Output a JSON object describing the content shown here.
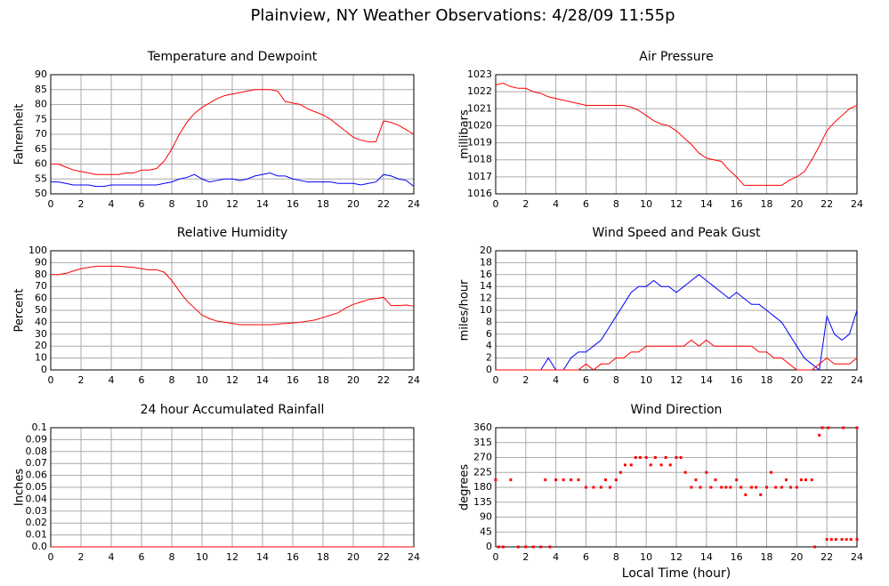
{
  "title": "Plainview, NY Weather Observations: 4/28/09 11:55p",
  "chart_data": [
    {
      "type": "line",
      "title": "Temperature and Dewpoint",
      "ylabel": "Fahrenheit",
      "x": [
        0,
        0.5,
        1,
        1.5,
        2,
        2.5,
        3,
        3.5,
        4,
        4.5,
        5,
        5.5,
        6,
        6.5,
        7,
        7.5,
        8,
        8.5,
        9,
        9.5,
        10,
        10.5,
        11,
        11.5,
        12,
        12.5,
        13,
        13.5,
        14,
        14.5,
        15,
        15.5,
        16,
        16.5,
        17,
        17.5,
        18,
        18.5,
        19,
        19.5,
        20,
        20.5,
        21,
        21.5,
        22,
        22.5,
        23,
        23.5,
        24
      ],
      "series": [
        {
          "color": "#ff0000",
          "values": [
            60,
            60,
            59,
            58,
            57.5,
            57,
            56.5,
            56.5,
            56.5,
            56.5,
            57,
            57,
            58,
            58,
            58.5,
            61,
            65,
            70,
            74,
            77,
            79,
            80.5,
            82,
            83,
            83.5,
            84,
            84.5,
            85,
            85,
            85,
            84.5,
            81,
            80.5,
            80,
            78.5,
            77.5,
            76.5,
            75,
            73,
            71,
            69,
            68,
            67.5,
            67.5,
            74.5,
            74,
            73,
            71.5,
            70
          ]
        },
        {
          "color": "#0000ff",
          "values": [
            54,
            54,
            53.5,
            53,
            53,
            53,
            52.5,
            52.5,
            53,
            53,
            53,
            53,
            53,
            53,
            53,
            53.5,
            54,
            55,
            55.5,
            56.5,
            55,
            54,
            54.5,
            55,
            55,
            54.5,
            55,
            56,
            56.5,
            57,
            56,
            56,
            55,
            54.5,
            54,
            54,
            54,
            54,
            53.5,
            53.5,
            53.5,
            53,
            53.5,
            54,
            56.5,
            56,
            55,
            54.5,
            52.5
          ]
        }
      ],
      "xlim": [
        0,
        24
      ],
      "xticks": [
        0,
        2,
        4,
        6,
        8,
        10,
        12,
        14,
        16,
        18,
        20,
        22,
        24
      ],
      "ylim": [
        50,
        90
      ],
      "yticks": [
        50,
        55,
        60,
        65,
        70,
        75,
        80,
        85,
        90
      ],
      "grid": true
    },
    {
      "type": "line",
      "title": "Air Pressure",
      "ylabel": "millibars",
      "x": [
        0,
        0.5,
        1,
        1.5,
        2,
        2.5,
        3,
        3.5,
        4,
        4.5,
        5,
        5.5,
        6,
        6.5,
        7,
        7.5,
        8,
        8.5,
        9,
        9.5,
        10,
        10.5,
        11,
        11.5,
        12,
        12.5,
        13,
        13.5,
        14,
        14.5,
        15,
        15.5,
        16,
        16.5,
        17,
        17.5,
        18,
        18.5,
        19,
        19.5,
        20,
        20.5,
        21,
        21.5,
        22,
        22.5,
        23,
        23.5,
        24
      ],
      "series": [
        {
          "color": "#ff0000",
          "values": [
            1022.4,
            1022.5,
            1022.3,
            1022.2,
            1022.2,
            1022,
            1021.9,
            1021.7,
            1021.6,
            1021.5,
            1021.4,
            1021.3,
            1021.2,
            1021.2,
            1021.2,
            1021.2,
            1021.2,
            1021.2,
            1021.1,
            1020.9,
            1020.6,
            1020.3,
            1020.1,
            1020,
            1019.7,
            1019.3,
            1018.9,
            1018.4,
            1018.1,
            1018,
            1017.9,
            1017.4,
            1017,
            1016.5,
            1016.5,
            1016.5,
            1016.5,
            1016.5,
            1016.5,
            1016.8,
            1017,
            1017.3,
            1018,
            1018.8,
            1019.7,
            1020.2,
            1020.6,
            1021,
            1021.2
          ]
        }
      ],
      "xlim": [
        0,
        24
      ],
      "xticks": [
        0,
        2,
        4,
        6,
        8,
        10,
        12,
        14,
        16,
        18,
        20,
        22,
        24
      ],
      "ylim": [
        1016,
        1023
      ],
      "yticks": [
        1016,
        1017,
        1018,
        1019,
        1020,
        1021,
        1022,
        1023
      ],
      "grid": true
    },
    {
      "type": "line",
      "title": "Relative Humidity",
      "ylabel": "Percent",
      "x": [
        0,
        0.5,
        1,
        1.5,
        2,
        2.5,
        3,
        3.5,
        4,
        4.5,
        5,
        5.5,
        6,
        6.5,
        7,
        7.5,
        8,
        8.5,
        9,
        9.5,
        10,
        10.5,
        11,
        11.5,
        12,
        12.5,
        13,
        13.5,
        14,
        14.5,
        15,
        15.5,
        16,
        16.5,
        17,
        17.5,
        18,
        18.5,
        19,
        19.5,
        20,
        20.5,
        21,
        21.5,
        22,
        22.5,
        23,
        23.5,
        24
      ],
      "series": [
        {
          "color": "#ff0000",
          "values": [
            80,
            80,
            81,
            83,
            85,
            86,
            87,
            87,
            87,
            87,
            86.5,
            86,
            85,
            84,
            84,
            82,
            75,
            66,
            58,
            52,
            46,
            43,
            41,
            40,
            39,
            38,
            38,
            38,
            38,
            38,
            38.5,
            39,
            39.5,
            40,
            41,
            42,
            44,
            46,
            48,
            52,
            55,
            57,
            59,
            60,
            61,
            54,
            54,
            54.5,
            53.5
          ]
        }
      ],
      "xlim": [
        0,
        24
      ],
      "xticks": [
        0,
        2,
        4,
        6,
        8,
        10,
        12,
        14,
        16,
        18,
        20,
        22,
        24
      ],
      "ylim": [
        0,
        100
      ],
      "yticks": [
        0,
        10,
        20,
        30,
        40,
        50,
        60,
        70,
        80,
        90,
        100
      ],
      "grid": true
    },
    {
      "type": "line",
      "title": "Wind Speed and Peak Gust",
      "ylabel": "miles/hour",
      "x": [
        0,
        0.5,
        1,
        1.5,
        2,
        2.5,
        3,
        3.5,
        4,
        4.5,
        5,
        5.5,
        6,
        6.5,
        7,
        7.5,
        8,
        8.5,
        9,
        9.5,
        10,
        10.5,
        11,
        11.5,
        12,
        12.5,
        13,
        13.5,
        14,
        14.5,
        15,
        15.5,
        16,
        16.5,
        17,
        17.5,
        18,
        18.5,
        19,
        19.5,
        20,
        20.5,
        21,
        21.5,
        22,
        22.5,
        23,
        23.5,
        24
      ],
      "series": [
        {
          "color": "#0000ff",
          "values": [
            0,
            0,
            0,
            0,
            0,
            0,
            0,
            2,
            0,
            0,
            2,
            3,
            3,
            4,
            5,
            7,
            9,
            11,
            13,
            14,
            14,
            15,
            14,
            14,
            13,
            14,
            15,
            16,
            15,
            14,
            13,
            12,
            13,
            12,
            11,
            11,
            10,
            9,
            8,
            6,
            4,
            2,
            1,
            0,
            9,
            6,
            5,
            6,
            10
          ]
        },
        {
          "color": "#ff0000",
          "values": [
            0,
            0,
            0,
            0,
            0,
            0,
            0,
            0,
            0,
            0,
            0,
            0,
            1,
            0,
            1,
            1,
            2,
            2,
            3,
            3,
            4,
            4,
            4,
            4,
            4,
            4,
            5,
            4,
            5,
            4,
            4,
            4,
            4,
            4,
            4,
            3,
            3,
            2,
            2,
            1,
            0,
            0,
            0,
            1,
            2,
            1,
            1,
            1,
            2
          ]
        }
      ],
      "xlim": [
        0,
        24
      ],
      "xticks": [
        0,
        2,
        4,
        6,
        8,
        10,
        12,
        14,
        16,
        18,
        20,
        22,
        24
      ],
      "ylim": [
        0,
        20
      ],
      "yticks": [
        0,
        2,
        4,
        6,
        8,
        10,
        12,
        14,
        16,
        18,
        20
      ],
      "grid": true
    },
    {
      "type": "line",
      "title": "24 hour Accumulated Rainfall",
      "ylabel": "Inches",
      "x": [
        0,
        24
      ],
      "series": [
        {
          "color": "#ff0000",
          "values": [
            0,
            0
          ]
        }
      ],
      "xlim": [
        0,
        24
      ],
      "xticks": [
        0,
        2,
        4,
        6,
        8,
        10,
        12,
        14,
        16,
        18,
        20,
        22,
        24
      ],
      "ylim": [
        0,
        0.1
      ],
      "yticks": [
        {
          "value": 0,
          "label": "0.0"
        },
        0.01,
        0.02,
        0.03,
        0.04,
        0.05,
        0.06,
        0.07,
        0.08,
        0.09,
        0.1
      ],
      "grid": true
    },
    {
      "type": "scatter",
      "title": "Wind Direction",
      "ylabel": "degrees",
      "xlabel": "Local Time (hour)",
      "x": [
        0,
        0.2,
        0.5,
        1,
        1.5,
        2,
        2.5,
        3,
        3.3,
        3.6,
        4,
        4.5,
        5,
        5.5,
        6,
        6.5,
        7,
        7.3,
        7.6,
        8,
        8.3,
        8.6,
        9,
        9.3,
        9.6,
        10,
        10.3,
        10.6,
        11,
        11.3,
        11.6,
        12,
        12.3,
        12.6,
        13,
        13.3,
        13.6,
        14,
        14.3,
        14.6,
        15,
        15.3,
        15.6,
        16,
        16.3,
        16.6,
        17,
        17.3,
        17.6,
        18,
        18.3,
        18.6,
        19,
        19.3,
        19.6,
        20,
        20.3,
        20.6,
        21,
        21.2,
        21.5,
        21.7,
        22,
        22.3,
        22.6,
        23,
        23.3,
        23.6,
        24,
        22.1,
        23.1,
        24
      ],
      "series": [
        {
          "color": "#ff0000",
          "values": [
            202.5,
            0,
            0,
            202.5,
            0,
            0,
            0,
            0,
            202.5,
            0,
            202.5,
            202.5,
            202.5,
            202.5,
            180,
            180,
            180,
            202.5,
            180,
            202.5,
            225,
            247.5,
            247.5,
            270,
            270,
            270,
            247.5,
            270,
            247.5,
            270,
            247.5,
            270,
            270,
            225,
            180,
            202.5,
            180,
            225,
            180,
            202.5,
            180,
            180,
            180,
            202.5,
            180,
            157.5,
            180,
            180,
            157.5,
            180,
            225,
            180,
            180,
            202.5,
            180,
            180,
            202.5,
            202.5,
            202.5,
            0,
            337.5,
            360,
            22.5,
            22.5,
            22.5,
            22.5,
            22.5,
            22.5,
            22.5,
            360,
            360,
            360
          ]
        }
      ],
      "xlim": [
        0,
        24
      ],
      "xticks": [
        0,
        2,
        4,
        6,
        8,
        10,
        12,
        14,
        16,
        18,
        20,
        22,
        24
      ],
      "ylim": [
        0,
        360
      ],
      "yticks": [
        0,
        45,
        90,
        135,
        180,
        225,
        270,
        315,
        360
      ],
      "grid": true
    }
  ]
}
